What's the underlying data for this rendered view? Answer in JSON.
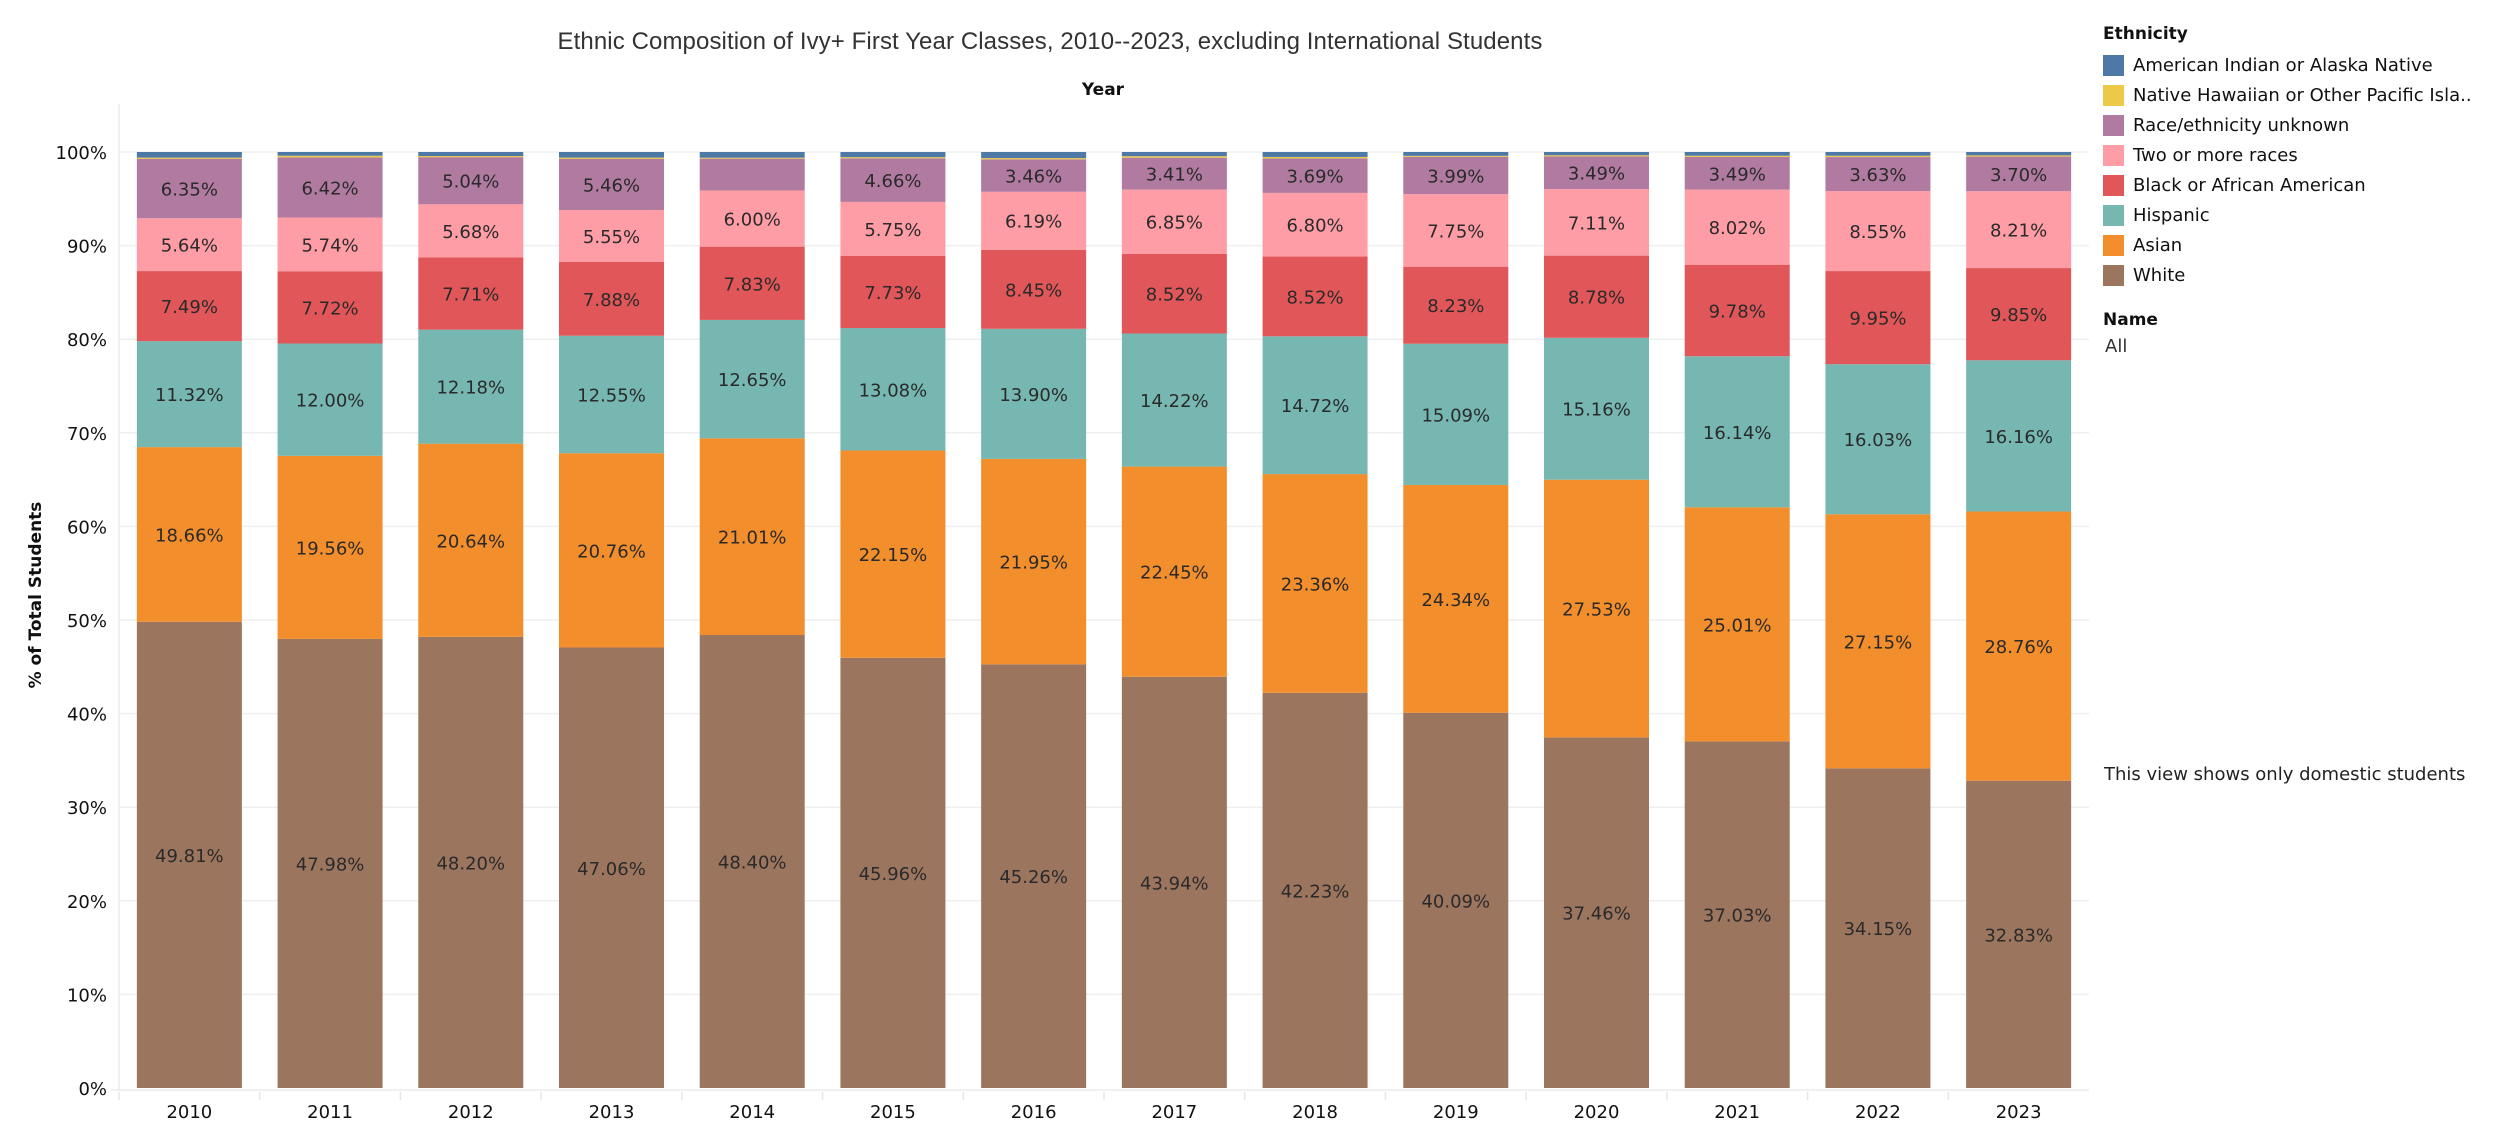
{
  "chart_data": {
    "type": "bar",
    "stacked": true,
    "title": "Ethnic Composition of Ivy+ First Year Classes, 2010--2023, excluding International Students",
    "x_header": "Year",
    "xlabel": "Year",
    "ylabel": "% of Total Students",
    "ylim": [
      0,
      100
    ],
    "y_ticks": [
      "0%",
      "10%",
      "20%",
      "30%",
      "40%",
      "50%",
      "60%",
      "70%",
      "80%",
      "90%",
      "100%"
    ],
    "y_tick_values": [
      0,
      10,
      20,
      30,
      40,
      50,
      60,
      70,
      80,
      90,
      100
    ],
    "grid": true,
    "legend_position": "right",
    "categories": [
      "2010",
      "2011",
      "2012",
      "2013",
      "2014",
      "2015",
      "2016",
      "2017",
      "2018",
      "2019",
      "2020",
      "2021",
      "2022",
      "2023"
    ],
    "series": [
      {
        "name": "White",
        "color": "#9c755f",
        "labeled": true,
        "values": [
          49.81,
          47.98,
          48.2,
          47.06,
          48.4,
          45.96,
          45.26,
          43.94,
          42.23,
          40.09,
          37.46,
          37.03,
          34.15,
          32.83
        ],
        "labels": [
          "49.81%",
          "47.98%",
          "48.20%",
          "47.06%",
          "48.40%",
          "45.96%",
          "45.26%",
          "43.94%",
          "42.23%",
          "40.09%",
          "37.46%",
          "37.03%",
          "34.15%",
          "32.83%"
        ]
      },
      {
        "name": "Asian",
        "color": "#f28e2b",
        "labeled": true,
        "values": [
          18.66,
          19.56,
          20.64,
          20.76,
          21.01,
          22.15,
          21.95,
          22.45,
          23.36,
          24.34,
          27.53,
          25.01,
          27.15,
          28.76
        ],
        "labels": [
          "18.66%",
          "19.56%",
          "20.64%",
          "20.76%",
          "21.01%",
          "22.15%",
          "21.95%",
          "22.45%",
          "23.36%",
          "24.34%",
          "27.53%",
          "25.01%",
          "27.15%",
          "28.76%"
        ]
      },
      {
        "name": "Hispanic",
        "color": "#76b7b2",
        "labeled": true,
        "values": [
          11.32,
          12.0,
          12.18,
          12.55,
          12.65,
          13.08,
          13.9,
          14.22,
          14.72,
          15.09,
          15.16,
          16.14,
          16.03,
          16.16
        ],
        "labels": [
          "11.32%",
          "12.00%",
          "12.18%",
          "12.55%",
          "12.65%",
          "13.08%",
          "13.90%",
          "14.22%",
          "14.72%",
          "15.09%",
          "15.16%",
          "16.14%",
          "16.03%",
          "16.16%"
        ]
      },
      {
        "name": "Black or African American",
        "color": "#e15759",
        "labeled": true,
        "values": [
          7.49,
          7.72,
          7.71,
          7.88,
          7.83,
          7.73,
          8.45,
          8.52,
          8.52,
          8.23,
          8.78,
          9.78,
          9.95,
          9.85
        ],
        "labels": [
          "7.49%",
          "7.72%",
          "7.71%",
          "7.88%",
          "7.83%",
          "7.73%",
          "8.45%",
          "8.52%",
          "8.52%",
          "8.23%",
          "8.78%",
          "9.78%",
          "9.95%",
          "9.85%"
        ]
      },
      {
        "name": "Two or more races",
        "color": "#ff9da7",
        "labeled": true,
        "values": [
          5.64,
          5.74,
          5.68,
          5.55,
          6.0,
          5.75,
          6.19,
          6.85,
          6.8,
          7.75,
          7.11,
          8.02,
          8.55,
          8.21
        ],
        "labels": [
          "5.64%",
          "5.74%",
          "5.68%",
          "5.55%",
          "6.00%",
          "5.75%",
          "6.19%",
          "6.85%",
          "6.80%",
          "7.75%",
          "7.11%",
          "8.02%",
          "8.55%",
          "8.21%"
        ]
      },
      {
        "name": "Race/ethnicity unknown",
        "color": "#b07aa1",
        "labeled": true,
        "values": [
          6.35,
          6.42,
          5.04,
          5.46,
          3.4,
          4.66,
          3.46,
          3.41,
          3.69,
          3.99,
          3.49,
          3.49,
          3.63,
          3.7
        ],
        "labels": [
          "6.35%",
          "6.42%",
          "5.04%",
          "5.46%",
          "",
          "4.66%",
          "3.46%",
          "3.41%",
          "3.69%",
          "3.99%",
          "3.49%",
          "3.49%",
          "3.63%",
          "3.70%"
        ]
      },
      {
        "name": "Native Hawaiian or Other Pacific Islander",
        "color": "#edc948",
        "labeled": false,
        "values": [
          0.13,
          0.18,
          0.12,
          0.14,
          0.1,
          0.12,
          0.14,
          0.16,
          0.15,
          0.1,
          0.12,
          0.13,
          0.14,
          0.13
        ]
      },
      {
        "name": "American Indian or Alaska Native",
        "color": "#4e79a7",
        "labeled": false,
        "values": [
          0.6,
          0.4,
          0.43,
          0.6,
          0.61,
          0.55,
          0.65,
          0.45,
          0.53,
          0.41,
          0.35,
          0.4,
          0.4,
          0.36
        ]
      }
    ]
  },
  "legend": {
    "title": "Ethnicity",
    "items": [
      {
        "label": "American Indian or Alaska Native",
        "color": "#4e79a7"
      },
      {
        "label": "Native Hawaiian or Other Pacific Isla..",
        "color": "#edc948"
      },
      {
        "label": "Race/ethnicity unknown",
        "color": "#b07aa1"
      },
      {
        "label": "Two or more races",
        "color": "#ff9da7"
      },
      {
        "label": "Black or African American",
        "color": "#e15759"
      },
      {
        "label": "Hispanic",
        "color": "#76b7b2"
      },
      {
        "label": "Asian",
        "color": "#f28e2b"
      },
      {
        "label": "White",
        "color": "#9c755f"
      }
    ]
  },
  "filter": {
    "title": "Name",
    "value": "All"
  },
  "annotation": "This view shows only domestic students"
}
